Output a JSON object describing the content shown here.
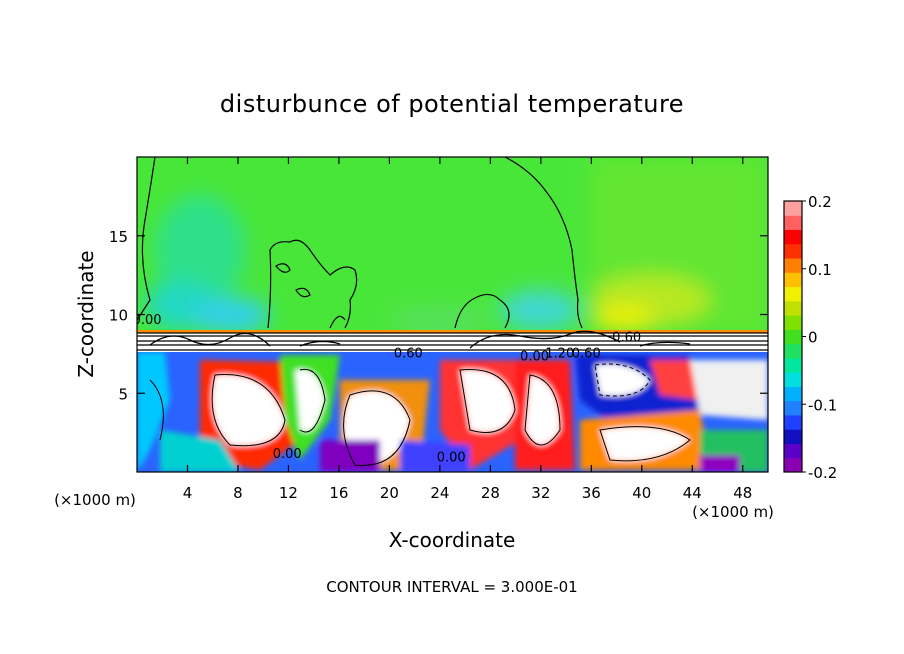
{
  "chart_data": {
    "type": "heatmap",
    "title": "disturbunce of potential temperature",
    "xlabel": "X-coordinate",
    "ylabel": "Z-coordinate",
    "x_unit_left": "(×1000 m)",
    "x_unit_right": "(×1000 m)",
    "xlim": [
      0,
      50
    ],
    "ylim": [
      0,
      20
    ],
    "xticks": [
      4,
      8,
      12,
      16,
      20,
      24,
      28,
      32,
      36,
      40,
      44,
      48
    ],
    "yticks": [
      5,
      10,
      15
    ],
    "footer": "CONTOUR INTERVAL = 3.000E-01",
    "colorbar": {
      "range": [
        -0.2,
        0.2
      ],
      "ticks": [
        {
          "value": 0.2,
          "label": "0.2"
        },
        {
          "value": 0.1,
          "label": "0.1"
        },
        {
          "value": 0.0,
          "label": "0"
        },
        {
          "value": -0.1,
          "label": "-0.1"
        },
        {
          "value": -0.2,
          "label": "-0.2"
        }
      ],
      "colors": [
        "#8b00b0",
        "#5a00c8",
        "#1010c0",
        "#2040ff",
        "#2080ff",
        "#00b0ff",
        "#00e0e0",
        "#00e8a0",
        "#20e060",
        "#40e020",
        "#80e000",
        "#c0e000",
        "#f0f000",
        "#ffc000",
        "#ff8000",
        "#ff3000",
        "#ff0000",
        "#ff6060",
        "#ffa0a0"
      ]
    },
    "contour_labels": [
      {
        "x": 0.8,
        "z": 9.7,
        "label": "0.00"
      },
      {
        "x": 21.5,
        "z": 7.6,
        "label": "0.60"
      },
      {
        "x": 38.8,
        "z": 8.6,
        "label": "0.60"
      },
      {
        "x": 33.5,
        "z": 7.6,
        "label": "1.20"
      },
      {
        "x": 35.6,
        "z": 7.6,
        "label": "0.60"
      },
      {
        "x": 31.5,
        "z": 7.4,
        "label": "0.00"
      },
      {
        "x": 11.9,
        "z": 1.2,
        "label": "0.00"
      },
      {
        "x": 24.9,
        "z": 1.0,
        "label": "0.00"
      }
    ]
  }
}
